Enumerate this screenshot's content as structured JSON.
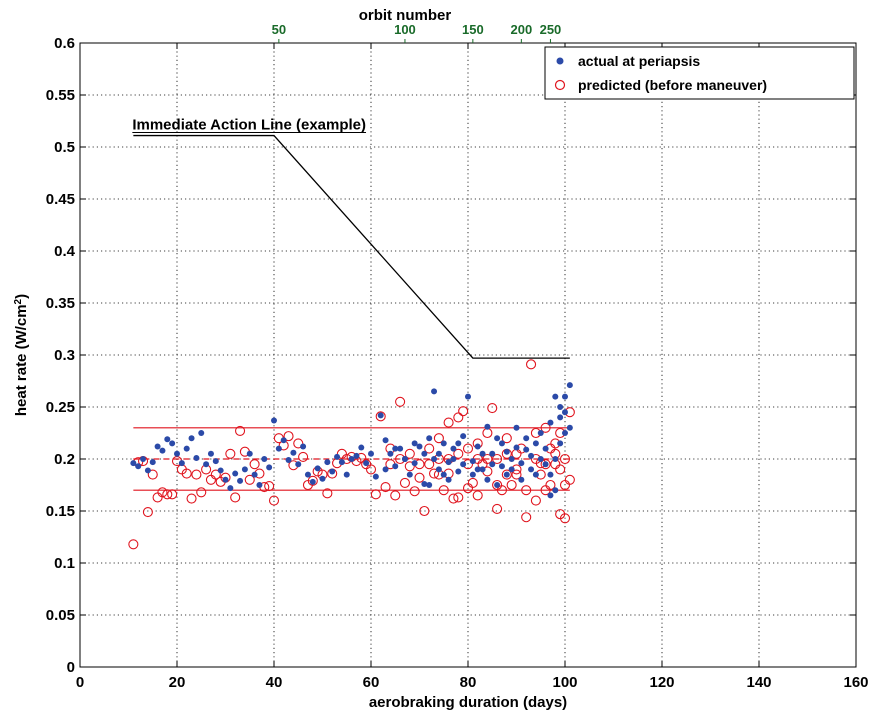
{
  "chart_data": {
    "type": "scatter",
    "xlabel": "aerobraking duration (days)",
    "ylabel_main": "heat rate (W/cm",
    "ylabel_sup": "2",
    "ylabel_close": ")",
    "xlim": [
      0,
      160
    ],
    "ylim": [
      0,
      0.6
    ],
    "x_ticks": [
      "0",
      "20",
      "40",
      "60",
      "80",
      "100",
      "120",
      "140",
      "160"
    ],
    "y_ticks": [
      "0",
      "0.05",
      "0.1",
      "0.15",
      "0.2",
      "0.25",
      "0.3",
      "0.35",
      "0.4",
      "0.45",
      "0.5",
      "0.55",
      "0.6"
    ],
    "grid": true,
    "top_axis": {
      "label": "orbit number",
      "color": "#1a6b2a",
      "ticks": [
        {
          "label": "50",
          "x": 41
        },
        {
          "label": "100",
          "x": 67
        },
        {
          "label": "150",
          "x": 81
        },
        {
          "label": "200",
          "x": 91
        },
        {
          "label": "250",
          "x": 97
        }
      ]
    },
    "legend": {
      "position": "top-right",
      "entries": [
        "actual at periapsis",
        "predicted (before maneuver)"
      ]
    },
    "annotation": "Immediate Action Line (example)",
    "immediate_action_line": [
      [
        11,
        0.511
      ],
      [
        40,
        0.511
      ],
      [
        81,
        0.297
      ],
      [
        101,
        0.297
      ]
    ],
    "limit_lines": {
      "upper": {
        "x": [
          11,
          101
        ],
        "y": 0.23
      },
      "mean": {
        "x": [
          11,
          101
        ],
        "y": 0.2
      },
      "lower": {
        "x": [
          11,
          101
        ],
        "y": 0.17
      }
    },
    "series": [
      {
        "name": "actual at periapsis",
        "color": "#2b4aa8",
        "marker": "filled-circle",
        "points": [
          [
            11,
            0.196
          ],
          [
            12,
            0.193
          ],
          [
            13,
            0.2
          ],
          [
            14,
            0.189
          ],
          [
            15,
            0.197
          ],
          [
            16,
            0.212
          ],
          [
            17,
            0.208
          ],
          [
            18,
            0.219
          ],
          [
            19,
            0.215
          ],
          [
            20,
            0.205
          ],
          [
            21,
            0.196
          ],
          [
            22,
            0.21
          ],
          [
            23,
            0.22
          ],
          [
            24,
            0.201
          ],
          [
            25,
            0.225
          ],
          [
            26,
            0.195
          ],
          [
            27,
            0.205
          ],
          [
            28,
            0.198
          ],
          [
            29,
            0.189
          ],
          [
            30,
            0.18
          ],
          [
            31,
            0.172
          ],
          [
            32,
            0.186
          ],
          [
            33,
            0.179
          ],
          [
            34,
            0.19
          ],
          [
            35,
            0.205
          ],
          [
            36,
            0.185
          ],
          [
            37,
            0.175
          ],
          [
            38,
            0.2
          ],
          [
            39,
            0.192
          ],
          [
            40,
            0.237
          ],
          [
            41,
            0.21
          ],
          [
            42,
            0.218
          ],
          [
            43,
            0.199
          ],
          [
            44,
            0.206
          ],
          [
            45,
            0.195
          ],
          [
            46,
            0.212
          ],
          [
            47,
            0.185
          ],
          [
            48,
            0.178
          ],
          [
            49,
            0.191
          ],
          [
            50,
            0.181
          ],
          [
            51,
            0.197
          ],
          [
            52,
            0.188
          ],
          [
            53,
            0.202
          ],
          [
            54,
            0.197
          ],
          [
            55,
            0.185
          ],
          [
            56,
            0.2
          ],
          [
            57,
            0.203
          ],
          [
            58,
            0.211
          ],
          [
            59,
            0.196
          ],
          [
            60,
            0.205
          ],
          [
            61,
            0.183
          ],
          [
            62,
            0.242
          ],
          [
            63,
            0.218
          ],
          [
            64,
            0.205
          ],
          [
            65,
            0.193
          ],
          [
            66,
            0.21
          ],
          [
            67,
            0.2
          ],
          [
            68,
            0.185
          ],
          [
            69,
            0.196
          ],
          [
            70,
            0.212
          ],
          [
            71,
            0.176
          ],
          [
            72,
            0.22
          ],
          [
            73,
            0.265
          ],
          [
            74,
            0.205
          ],
          [
            75,
            0.215
          ],
          [
            76,
            0.197
          ],
          [
            77,
            0.2
          ],
          [
            78,
            0.188
          ],
          [
            79,
            0.222
          ],
          [
            80,
            0.26
          ],
          [
            81,
            0.198
          ],
          [
            82,
            0.212
          ],
          [
            83,
            0.205
          ],
          [
            84,
            0.231
          ],
          [
            85,
            0.195
          ],
          [
            86,
            0.22
          ],
          [
            87,
            0.193
          ],
          [
            88,
            0.207
          ],
          [
            89,
            0.2
          ],
          [
            90,
            0.211
          ],
          [
            91,
            0.196
          ],
          [
            92,
            0.209
          ],
          [
            93,
            0.203
          ],
          [
            94,
            0.215
          ],
          [
            95,
            0.2
          ],
          [
            96,
            0.195
          ],
          [
            97,
            0.235
          ],
          [
            98,
            0.26
          ],
          [
            99,
            0.25
          ],
          [
            100,
            0.245
          ],
          [
            101,
            0.271
          ],
          [
            72,
            0.175
          ],
          [
            74,
            0.19
          ],
          [
            76,
            0.18
          ],
          [
            78,
            0.215
          ],
          [
            82,
            0.19
          ],
          [
            84,
            0.18
          ],
          [
            86,
            0.175
          ],
          [
            88,
            0.185
          ],
          [
            90,
            0.23
          ],
          [
            92,
            0.22
          ],
          [
            94,
            0.185
          ],
          [
            95,
            0.225
          ],
          [
            96,
            0.21
          ],
          [
            97,
            0.185
          ],
          [
            98,
            0.2
          ],
          [
            99,
            0.215
          ],
          [
            100,
            0.225
          ],
          [
            101,
            0.23
          ],
          [
            99,
            0.24
          ],
          [
            100,
            0.26
          ],
          [
            97,
            0.165
          ],
          [
            98,
            0.17
          ],
          [
            93,
            0.19
          ],
          [
            91,
            0.18
          ],
          [
            89,
            0.19
          ],
          [
            87,
            0.215
          ],
          [
            85,
            0.205
          ],
          [
            83,
            0.19
          ],
          [
            81,
            0.185
          ],
          [
            79,
            0.195
          ],
          [
            77,
            0.21
          ],
          [
            75,
            0.185
          ],
          [
            73,
            0.2
          ],
          [
            71,
            0.205
          ],
          [
            69,
            0.215
          ],
          [
            67,
            0.2
          ],
          [
            65,
            0.21
          ],
          [
            63,
            0.19
          ]
        ]
      },
      {
        "name": "predicted (before maneuver)",
        "color": "#e0141e",
        "marker": "open-circle",
        "points": [
          [
            11,
            0.118
          ],
          [
            12,
            0.197
          ],
          [
            13,
            0.198
          ],
          [
            14,
            0.149
          ],
          [
            15,
            0.185
          ],
          [
            16,
            0.163
          ],
          [
            17,
            0.168
          ],
          [
            18,
            0.166
          ],
          [
            19,
            0.166
          ],
          [
            20,
            0.198
          ],
          [
            21,
            0.19
          ],
          [
            22,
            0.186
          ],
          [
            23,
            0.162
          ],
          [
            24,
            0.185
          ],
          [
            25,
            0.168
          ],
          [
            26,
            0.19
          ],
          [
            27,
            0.18
          ],
          [
            28,
            0.185
          ],
          [
            29,
            0.178
          ],
          [
            30,
            0.182
          ],
          [
            31,
            0.205
          ],
          [
            32,
            0.163
          ],
          [
            33,
            0.227
          ],
          [
            34,
            0.207
          ],
          [
            35,
            0.18
          ],
          [
            36,
            0.195
          ],
          [
            37,
            0.186
          ],
          [
            38,
            0.173
          ],
          [
            39,
            0.174
          ],
          [
            40,
            0.16
          ],
          [
            41,
            0.22
          ],
          [
            42,
            0.213
          ],
          [
            43,
            0.222
          ],
          [
            44,
            0.194
          ],
          [
            45,
            0.215
          ],
          [
            46,
            0.202
          ],
          [
            47,
            0.175
          ],
          [
            48,
            0.179
          ],
          [
            49,
            0.188
          ],
          [
            50,
            0.185
          ],
          [
            51,
            0.167
          ],
          [
            52,
            0.186
          ],
          [
            53,
            0.196
          ],
          [
            54,
            0.205
          ],
          [
            55,
            0.2
          ],
          [
            56,
            0.202
          ],
          [
            57,
            0.198
          ],
          [
            58,
            0.201
          ],
          [
            59,
            0.195
          ],
          [
            60,
            0.19
          ],
          [
            61,
            0.166
          ],
          [
            62,
            0.241
          ],
          [
            63,
            0.173
          ],
          [
            64,
            0.21
          ],
          [
            65,
            0.165
          ],
          [
            66,
            0.255
          ],
          [
            67,
            0.177
          ],
          [
            68,
            0.193
          ],
          [
            69,
            0.169
          ],
          [
            70,
            0.182
          ],
          [
            71,
            0.15
          ],
          [
            72,
            0.195
          ],
          [
            73,
            0.186
          ],
          [
            74,
            0.22
          ],
          [
            75,
            0.17
          ],
          [
            76,
            0.186
          ],
          [
            77,
            0.162
          ],
          [
            78,
            0.163
          ],
          [
            79,
            0.246
          ],
          [
            80,
            0.172
          ],
          [
            81,
            0.177
          ],
          [
            82,
            0.2
          ],
          [
            83,
            0.195
          ],
          [
            84,
            0.188
          ],
          [
            85,
            0.249
          ],
          [
            86,
            0.152
          ],
          [
            87,
            0.17
          ],
          [
            88,
            0.205
          ],
          [
            89,
            0.175
          ],
          [
            90,
            0.185
          ],
          [
            91,
            0.21
          ],
          [
            92,
            0.144
          ],
          [
            93,
            0.291
          ],
          [
            94,
            0.16
          ],
          [
            95,
            0.196
          ],
          [
            96,
            0.17
          ],
          [
            97,
            0.21
          ],
          [
            98,
            0.195
          ],
          [
            99,
            0.147
          ],
          [
            100,
            0.143
          ],
          [
            101,
            0.245
          ],
          [
            72,
            0.21
          ],
          [
            74,
            0.2
          ],
          [
            76,
            0.235
          ],
          [
            78,
            0.24
          ],
          [
            80,
            0.21
          ],
          [
            82,
            0.165
          ],
          [
            84,
            0.225
          ],
          [
            86,
            0.175
          ],
          [
            88,
            0.22
          ],
          [
            90,
            0.19
          ],
          [
            92,
            0.17
          ],
          [
            94,
            0.2
          ],
          [
            95,
            0.185
          ],
          [
            96,
            0.23
          ],
          [
            97,
            0.175
          ],
          [
            98,
            0.215
          ],
          [
            99,
            0.19
          ],
          [
            100,
            0.2
          ],
          [
            101,
            0.18
          ],
          [
            99,
            0.225
          ],
          [
            100,
            0.175
          ],
          [
            98,
            0.205
          ],
          [
            96,
            0.195
          ],
          [
            94,
            0.225
          ],
          [
            90,
            0.205
          ],
          [
            88,
            0.185
          ],
          [
            86,
            0.2
          ],
          [
            84,
            0.2
          ],
          [
            82,
            0.215
          ],
          [
            80,
            0.195
          ],
          [
            78,
            0.205
          ],
          [
            76,
            0.2
          ],
          [
            74,
            0.185
          ],
          [
            70,
            0.195
          ],
          [
            68,
            0.205
          ],
          [
            66,
            0.2
          ],
          [
            64,
            0.195
          ]
        ]
      }
    ]
  }
}
